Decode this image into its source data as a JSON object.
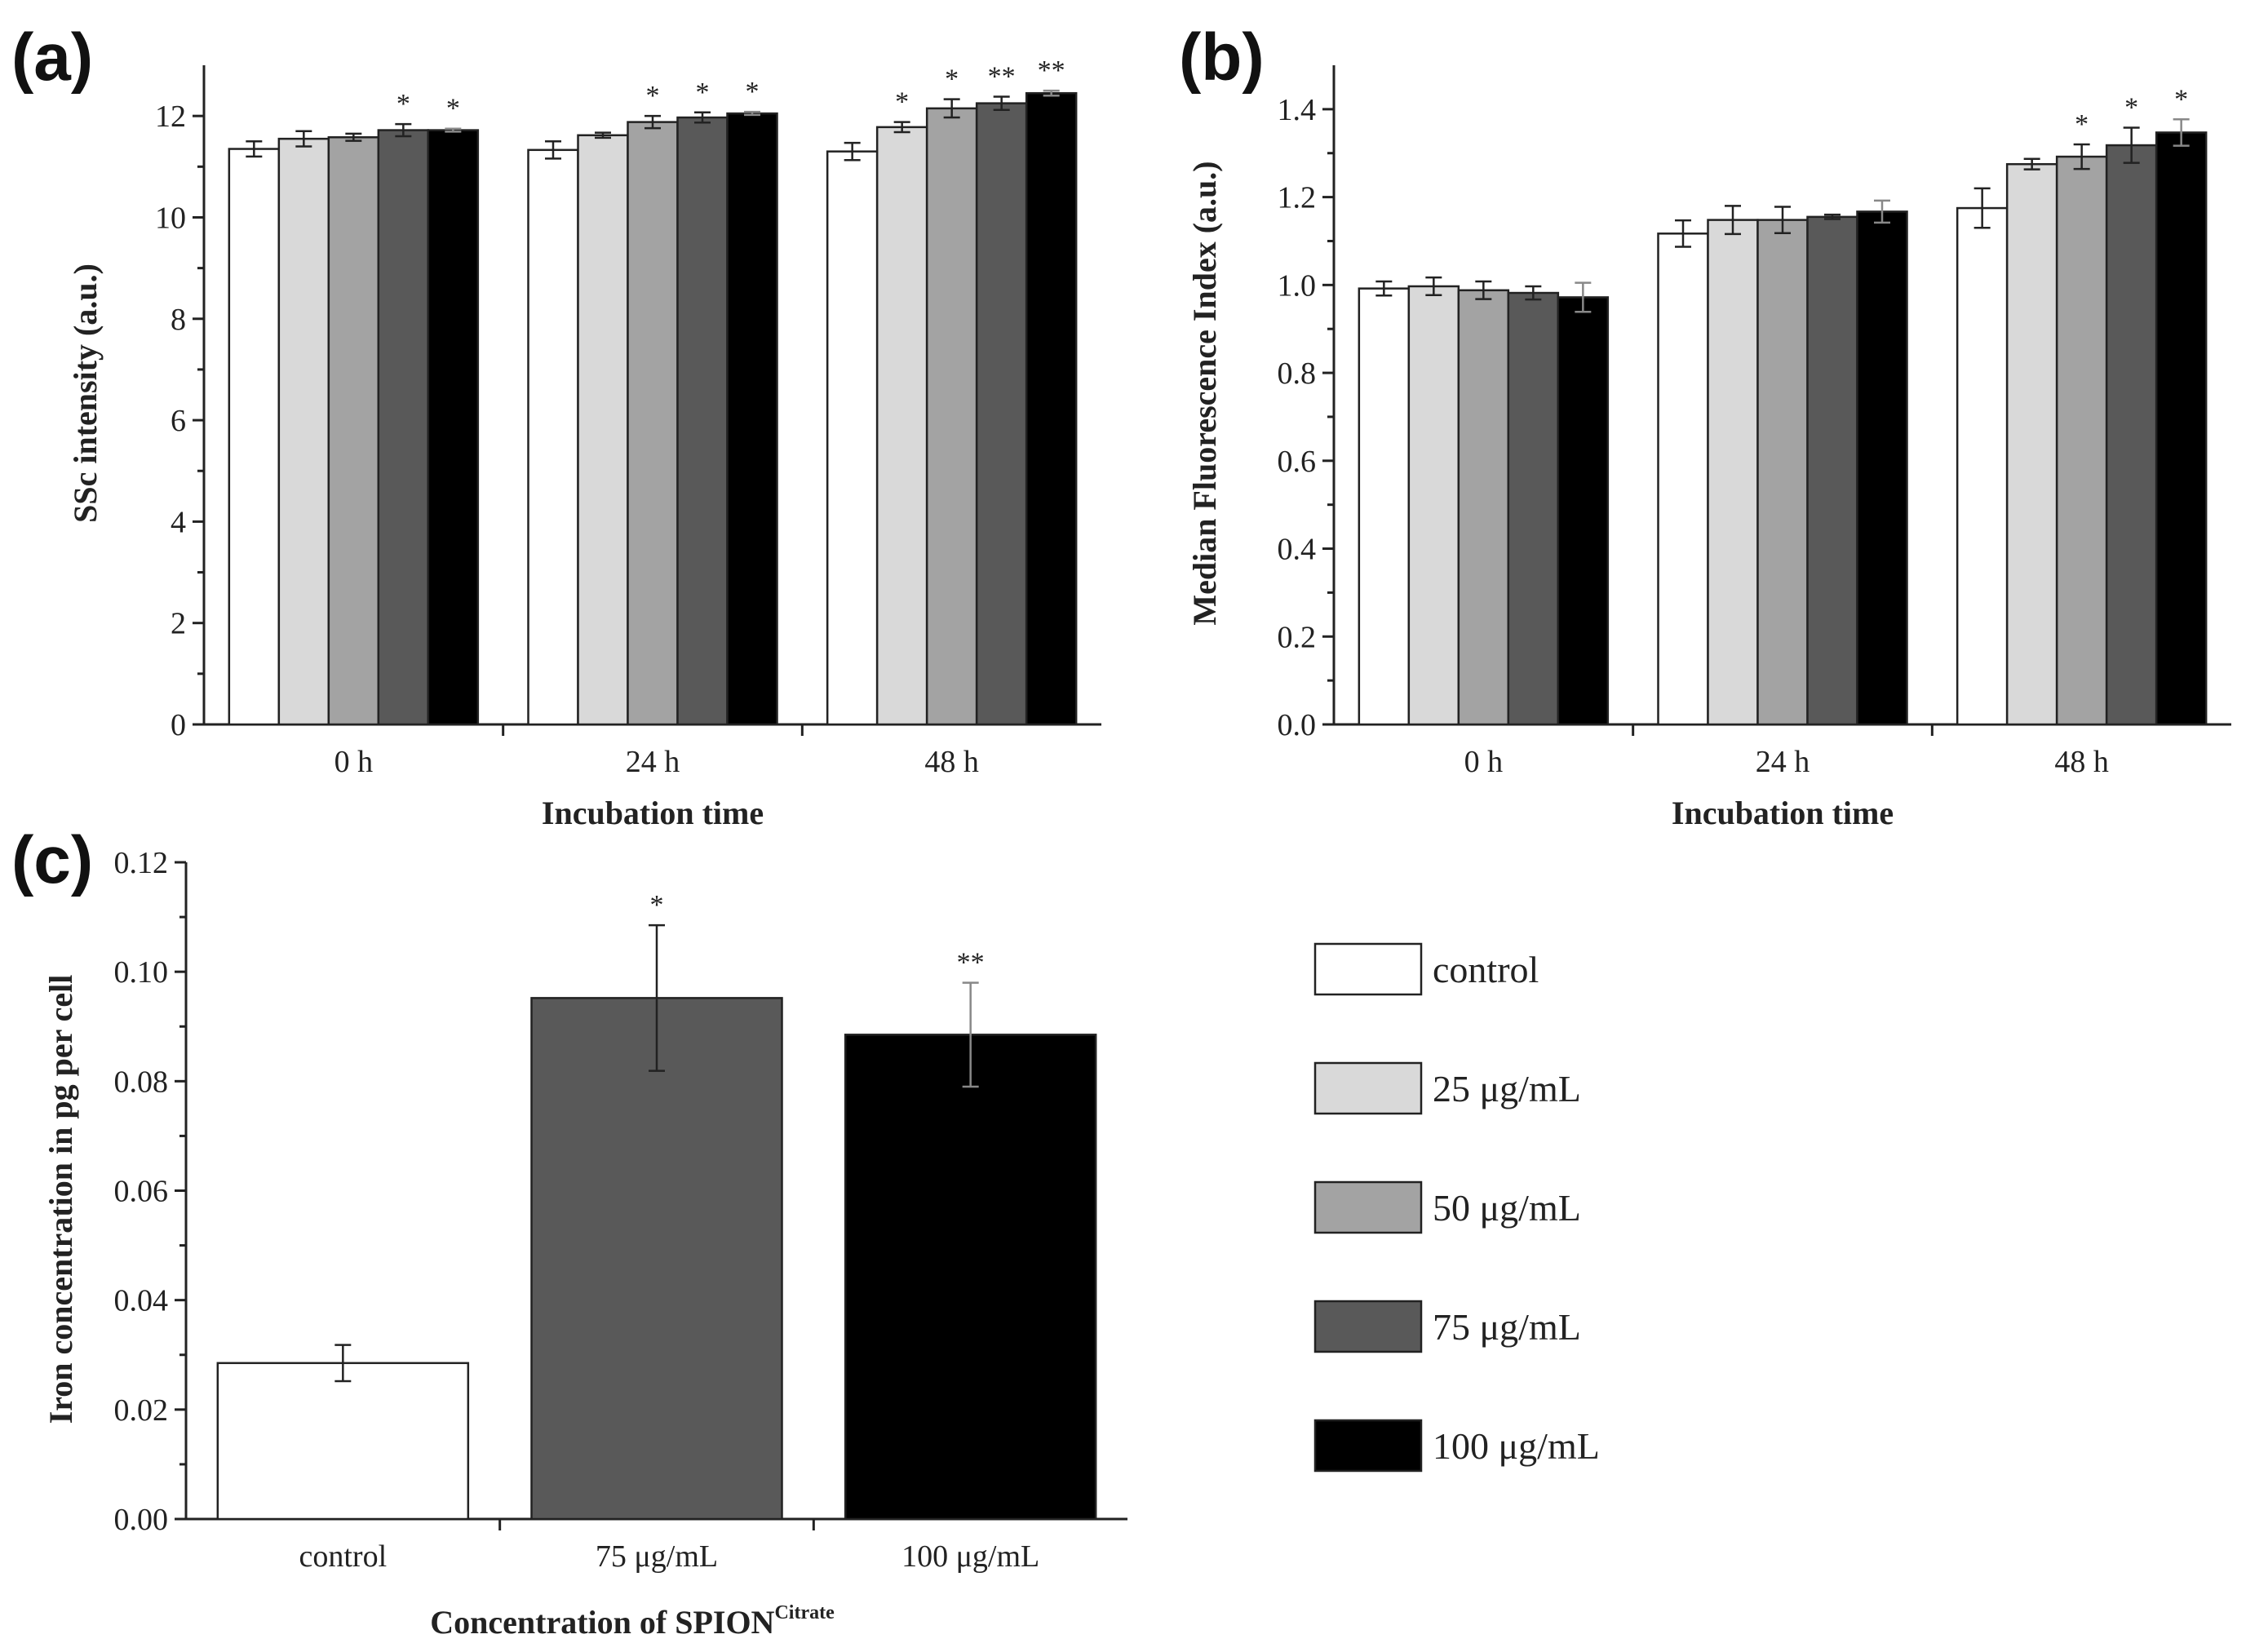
{
  "panel_labels": [
    "(a)",
    "(b)",
    "(c)"
  ],
  "legend": [
    {
      "label": "control",
      "color": "#ffffff"
    },
    {
      "label": "25 μg/mL",
      "color": "#d9d9d9"
    },
    {
      "label": "50 μg/mL",
      "color": "#a3a3a3"
    },
    {
      "label": "75 μg/mL",
      "color": "#595959"
    },
    {
      "label": "100 μg/mL",
      "color": "#000000"
    }
  ],
  "chart_data": [
    {
      "id": "a",
      "type": "bar",
      "title": "",
      "xlabel": "Incubation time",
      "ylabel": "SSc intensity (a.u.)",
      "categories": [
        "0 h",
        "24 h",
        "48 h"
      ],
      "ylim": [
        0,
        13
      ],
      "yticks": [
        0,
        2,
        4,
        6,
        8,
        10,
        12
      ],
      "ytick_labels": [
        "0",
        "2",
        "4",
        "6",
        "8",
        "10",
        "12"
      ],
      "series": [
        {
          "name": "control",
          "values": [
            11.35,
            11.33,
            11.3
          ],
          "errors": [
            0.15,
            0.17,
            0.17
          ],
          "marks": [
            "",
            "",
            ""
          ]
        },
        {
          "name": "25 μg/mL",
          "values": [
            11.55,
            11.62,
            11.78
          ],
          "errors": [
            0.15,
            0.05,
            0.1
          ],
          "marks": [
            "",
            "",
            "*"
          ]
        },
        {
          "name": "50 μg/mL",
          "values": [
            11.58,
            11.88,
            12.15
          ],
          "errors": [
            0.07,
            0.12,
            0.18
          ],
          "marks": [
            "",
            "*",
            "*"
          ]
        },
        {
          "name": "75 μg/mL",
          "values": [
            11.72,
            11.97,
            12.25
          ],
          "errors": [
            0.12,
            0.1,
            0.13
          ],
          "marks": [
            "*",
            "*",
            "**"
          ]
        },
        {
          "name": "100 μg/mL",
          "values": [
            11.72,
            12.05,
            12.45
          ],
          "errors": [
            0.03,
            0.03,
            0.05
          ],
          "marks": [
            "*",
            "*",
            "**"
          ]
        }
      ]
    },
    {
      "id": "b",
      "type": "bar",
      "title": "",
      "xlabel": "Incubation time",
      "ylabel": "Median Fluorescence Index (a.u.)",
      "categories": [
        "0 h",
        "24 h",
        "48 h"
      ],
      "ylim": [
        0,
        1.5
      ],
      "yticks": [
        0,
        0.2,
        0.4,
        0.6,
        0.8,
        1.0,
        1.2,
        1.4
      ],
      "ytick_labels": [
        "0.0",
        "0.2",
        "0.4",
        "0.6",
        "0.8",
        "1.0",
        "1.2",
        "1.4"
      ],
      "series": [
        {
          "name": "control",
          "values": [
            0.992,
            1.117,
            1.175
          ],
          "errors": [
            0.016,
            0.03,
            0.045
          ],
          "marks": [
            "",
            "",
            ""
          ]
        },
        {
          "name": "25 μg/mL",
          "values": [
            0.997,
            1.148,
            1.275
          ],
          "errors": [
            0.02,
            0.032,
            0.012
          ],
          "marks": [
            "",
            "",
            ""
          ]
        },
        {
          "name": "50 μg/mL",
          "values": [
            0.988,
            1.148,
            1.292
          ],
          "errors": [
            0.02,
            0.03,
            0.028
          ],
          "marks": [
            "",
            "",
            "*"
          ]
        },
        {
          "name": "75 μg/mL",
          "values": [
            0.982,
            1.155,
            1.318
          ],
          "errors": [
            0.015,
            0.005,
            0.04
          ],
          "marks": [
            "",
            "",
            "*"
          ]
        },
        {
          "name": "100 μg/mL",
          "values": [
            0.972,
            1.167,
            1.347
          ],
          "errors": [
            0.033,
            0.025,
            0.03
          ],
          "marks": [
            "",
            "",
            "*"
          ]
        }
      ]
    },
    {
      "id": "c",
      "type": "bar",
      "title": "",
      "xlabel_main": "Concentration of SPION",
      "xlabel_sup": "Citrate",
      "ylabel": "Iron concentration in pg per cell",
      "categories": [
        "control",
        "75 μg/mL",
        "100 μg/mL"
      ],
      "ylim": [
        0,
        0.12
      ],
      "yticks": [
        0,
        0.02,
        0.04,
        0.06,
        0.08,
        0.1,
        0.12
      ],
      "ytick_labels": [
        "0.00",
        "0.02",
        "0.04",
        "0.06",
        "0.08",
        "0.10",
        "0.12"
      ],
      "values": [
        0.0285,
        0.0952,
        0.0885
      ],
      "errors": [
        0.0033,
        0.0133,
        0.0095
      ],
      "colors": [
        "#ffffff",
        "#595959",
        "#000000"
      ],
      "marks": [
        "",
        "*",
        "**"
      ]
    }
  ]
}
